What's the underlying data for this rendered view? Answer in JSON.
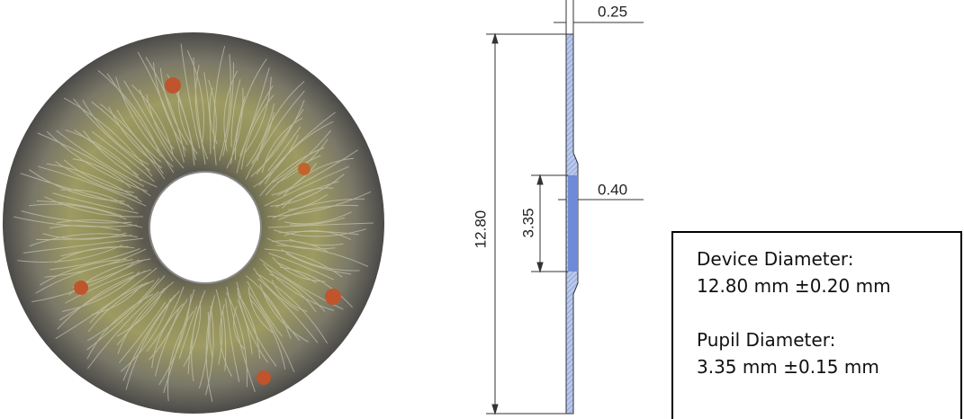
{
  "dimensions": {
    "thickness": "0.25",
    "pupil_thickness": "0.40",
    "device_diameter": "12.80",
    "pupil_diameter": "3.35"
  },
  "spec_box": {
    "device_label": "Device Diameter:",
    "device_value": "12.80 mm ±0.20 mm",
    "pupil_label": "Pupil Diameter:",
    "pupil_value": "3.35 mm ±0.15 mm"
  }
}
